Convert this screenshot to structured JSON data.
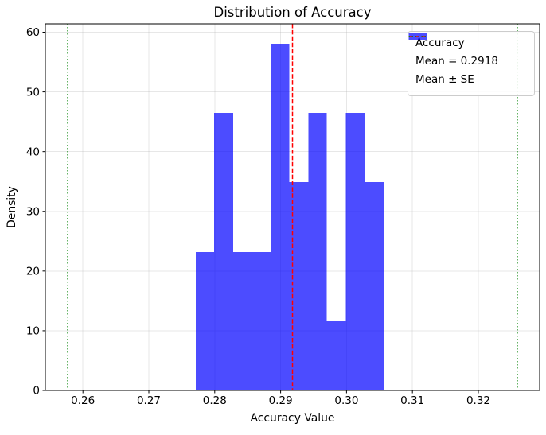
{
  "chart_data": {
    "type": "bar",
    "subtype": "histogram",
    "title": "Distribution of Accuracy",
    "xlabel": "Accuracy Value",
    "ylabel": "Density",
    "series_label": "Accuracy",
    "bar_color": "#0000ff",
    "bar_alpha": 0.7,
    "n_bins": 10,
    "bin_edges": [
      0.2771,
      0.2799,
      0.2828,
      0.2856,
      0.2885,
      0.2913,
      0.2942,
      0.297,
      0.2999,
      0.3027,
      0.3056
    ],
    "densities": [
      23.2,
      46.5,
      23.2,
      23.2,
      58.1,
      34.9,
      46.5,
      11.6,
      46.5,
      34.9
    ],
    "implied_counts": [
      2,
      4,
      2,
      2,
      5,
      3,
      4,
      1,
      4,
      3
    ],
    "mean_line": {
      "value": 0.2918,
      "color": "#ff0000",
      "linestyle": "dashed",
      "legend_label": "Mean = 0.2918"
    },
    "se_lines": {
      "values": [
        0.2577,
        0.3259
      ],
      "se": 0.0341,
      "color": "#008000",
      "linestyle": "dotted",
      "legend_label": "Mean ± SE"
    },
    "xlim": [
      0.2543,
      0.3293
    ],
    "ylim": [
      0,
      61.4
    ],
    "xticks": {
      "values": [
        0.26,
        0.27,
        0.28,
        0.29,
        0.3,
        0.31,
        0.32
      ],
      "labels": [
        "0.26",
        "0.27",
        "0.28",
        "0.29",
        "0.30",
        "0.31",
        "0.32"
      ]
    },
    "yticks": {
      "values": [
        0,
        10,
        20,
        30,
        40,
        50,
        60
      ],
      "labels": [
        "0",
        "10",
        "20",
        "30",
        "40",
        "50",
        "60"
      ]
    },
    "grid": true,
    "grid_color": "#b0b0b0",
    "grid_alpha": 0.3,
    "legend_position": "upper right"
  },
  "legend": {
    "entries": [
      {
        "label": "Accuracy",
        "key": "blue-patch",
        "color": "#0000ff"
      },
      {
        "label": "Mean = 0.2918",
        "key": "red-dashed-line",
        "color": "#ff0000"
      },
      {
        "label": "Mean ± SE",
        "key": "green-dotted-line",
        "color": "#008000"
      }
    ]
  }
}
